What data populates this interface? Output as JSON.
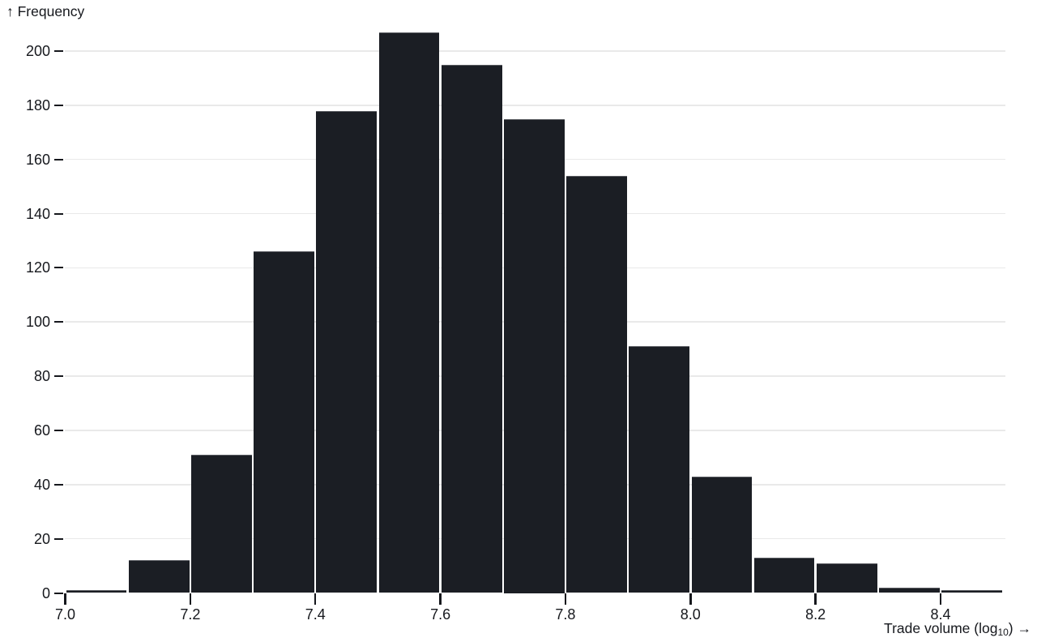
{
  "chart_data": {
    "type": "histogram",
    "title": "",
    "xlabel": "Trade volume (log10)",
    "ylabel": "Frequency",
    "labels": {
      "y_title": "↑ Frequency",
      "x_title_prefix": "Trade volume (log",
      "x_title_sub": "10",
      "x_title_suffix": ") →"
    },
    "bin_edges": [
      7.0,
      7.1,
      7.2,
      7.3,
      7.4,
      7.5,
      7.6,
      7.7,
      7.8,
      7.9,
      8.0,
      8.1,
      8.2,
      8.3,
      8.4,
      8.5
    ],
    "counts": [
      1,
      12,
      51,
      126,
      178,
      207,
      195,
      175,
      154,
      91,
      43,
      13,
      11,
      2,
      1
    ],
    "x_ticks": [
      7.0,
      7.2,
      7.4,
      7.6,
      7.8,
      8.0,
      8.2,
      8.4
    ],
    "x_tick_labels": [
      "7.0",
      "7.2",
      "7.4",
      "7.6",
      "7.8",
      "8.0",
      "8.2",
      "8.4"
    ],
    "y_ticks": [
      0,
      20,
      40,
      60,
      80,
      100,
      120,
      140,
      160,
      180,
      200
    ],
    "y_tick_labels": [
      "0",
      "20",
      "40",
      "60",
      "80",
      "100",
      "120",
      "140",
      "160",
      "180",
      "200"
    ],
    "xlim": [
      7.0,
      8.5
    ],
    "ylim": [
      0,
      200
    ],
    "grid": "horizontal",
    "legend": "none",
    "colors": {
      "bar": "#1b1e24",
      "grid": "#e9e9e9",
      "text": "#16181d",
      "background": "#ffffff"
    }
  }
}
